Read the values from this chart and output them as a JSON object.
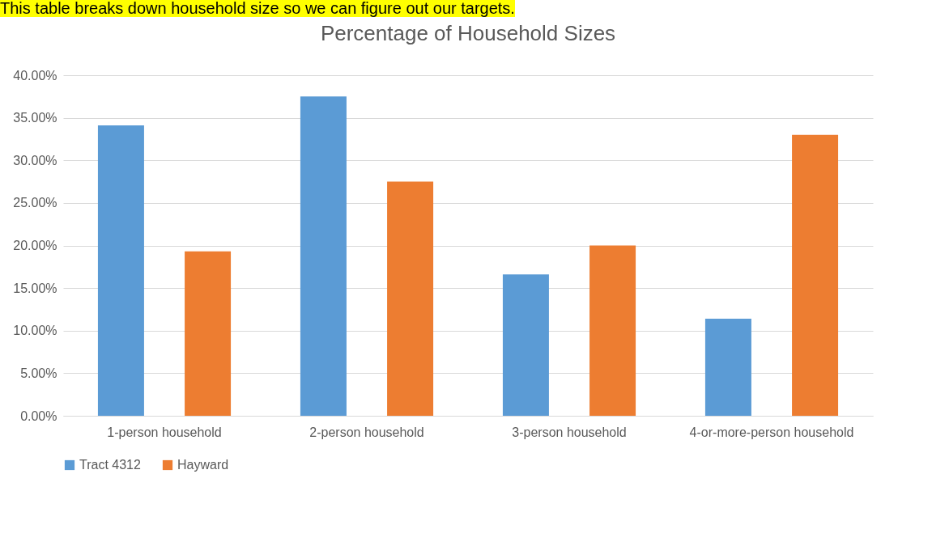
{
  "chart_data": {
    "type": "bar",
    "title": "Percentage of Household Sizes",
    "annotations": [
      "This table breaks down household size so we can figure out our targets."
    ],
    "categories": [
      "1-person household",
      "2-person household",
      "3-person household",
      "4-or-more-person household"
    ],
    "series": [
      {
        "name": "Tract 4312",
        "color": "#5b9bd5",
        "values": [
          34.1,
          37.5,
          16.6,
          11.4
        ]
      },
      {
        "name": "Hayward",
        "color": "#ed7d31",
        "values": [
          19.3,
          27.5,
          20.0,
          33.0
        ]
      }
    ],
    "ylim": [
      0,
      40
    ],
    "yticks": [
      {
        "value": 0,
        "label": "0.00%"
      },
      {
        "value": 5,
        "label": "5.00%"
      },
      {
        "value": 10,
        "label": "10.00%"
      },
      {
        "value": 15,
        "label": "15.00%"
      },
      {
        "value": 20,
        "label": "20.00%"
      },
      {
        "value": 25,
        "label": "25.00%"
      },
      {
        "value": 30,
        "label": "30.00%"
      },
      {
        "value": 35,
        "label": "35.00%"
      },
      {
        "value": 40,
        "label": "40.00%"
      }
    ],
    "grid": "y",
    "legend": "bottom"
  }
}
